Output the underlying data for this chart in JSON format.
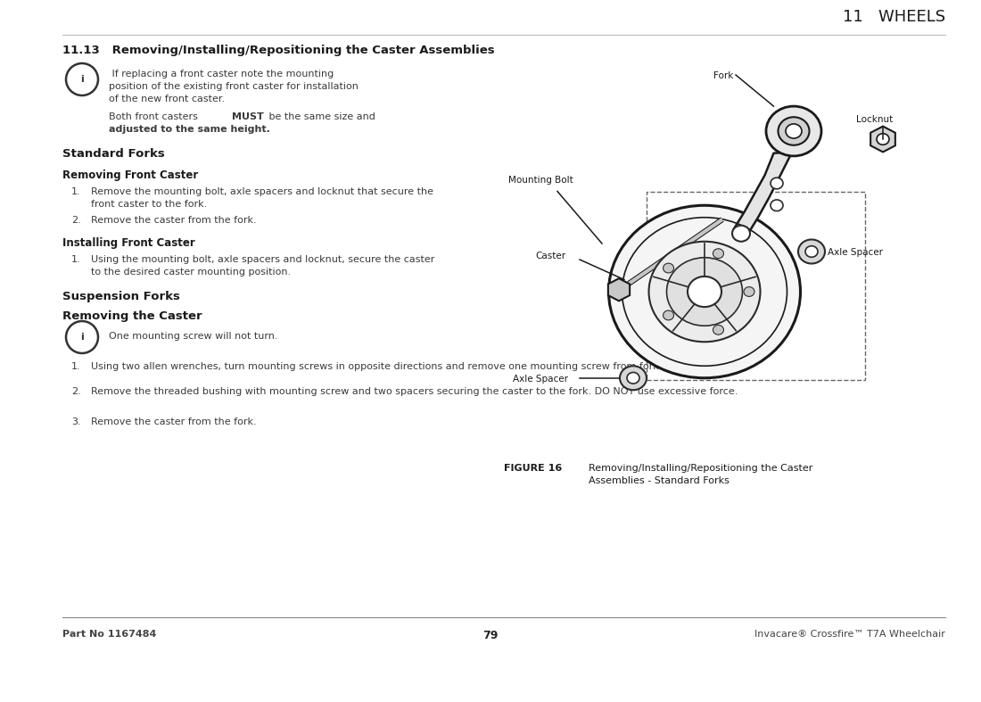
{
  "bg_color": "#ffffff",
  "text_color": "#3a3a3a",
  "header_color": "#1a1a1a",
  "page_width": 10.8,
  "page_height": 7.62,
  "chapter_header": "11   WHEELS",
  "section_title": "11.13   Removing/Installing/Repositioning the Caster Assemblies",
  "info_text_1a": " If replacing a front caster note the mounting",
  "info_text_1b": "position of the existing front caster for installation",
  "info_text_1c": "of the new front caster.",
  "info_text_2a": "Both front casters ",
  "info_text_2b": "MUST",
  "info_text_2c": " be the same size and",
  "info_text_2d": "adjusted to the same height.",
  "std_forks_title": "Standard Forks",
  "removing_title": "Removing Front Caster",
  "removing_step1": "Remove the mounting bolt, axle spacers and locknut that secure the",
  "removing_step1b": "front caster to the fork.",
  "removing_step2": "Remove the caster from the fork.",
  "installing_title": "Installing Front Caster",
  "installing_step1": "Using the mounting bolt, axle spacers and locknut, secure the caster",
  "installing_step1b": "to the desired caster mounting position.",
  "susp_title": "Suspension Forks",
  "removing_caster_title": "Removing the Caster",
  "info_text_3": "One mounting screw will not turn.",
  "susp_step1": "Using two allen wrenches, turn mounting screws in opposite directions and remove one mounting screw from fork.",
  "susp_step2": "Remove the threaded bushing with mounting screw and two spacers securing the caster to the fork. DO NOT use excessive force.",
  "susp_step3": "Remove the caster from the fork.",
  "figure_label": "FIGURE 16",
  "figure_caption_1": "Removing/Installing/Repositioning the Caster",
  "figure_caption_2": "Assemblies - Standard Forks",
  "footer_left": "Part No 1167484",
  "footer_center": "79",
  "footer_right": "Invacare® Crossfire™ T7A Wheelchair"
}
